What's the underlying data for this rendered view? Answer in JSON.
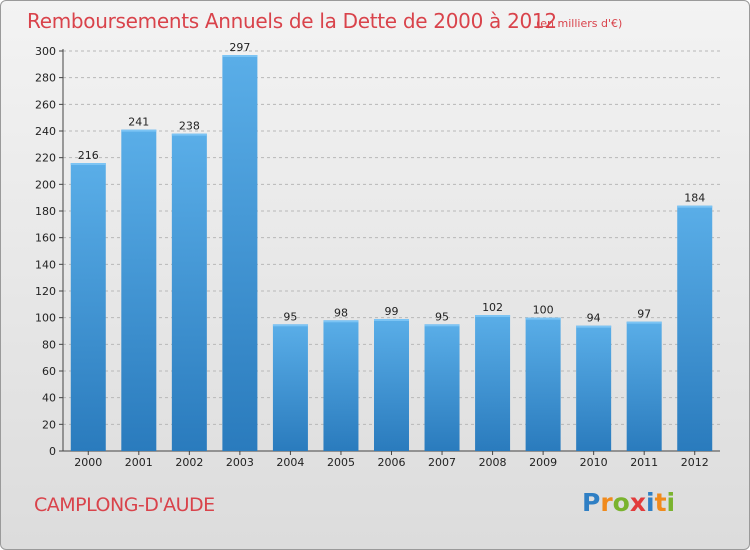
{
  "header": {
    "title": "Remboursements Annuels de la Dette de 2000 à 2012",
    "subtitle": "(en milliers d'€)"
  },
  "footer": {
    "place": "CAMPLONG-D'AUDE",
    "logo_text": "Proxiti",
    "logo_colors": [
      "#2f7fc4",
      "#f08a1c",
      "#7ab32e",
      "#e23b3b",
      "#2f7fc4",
      "#f08a1c",
      "#7ab32e"
    ]
  },
  "colors": {
    "bar_top": "#5aaee8",
    "bar_bottom": "#2a7bbd",
    "title": "#d9434b"
  },
  "chart_data": {
    "type": "bar",
    "title": "Remboursements Annuels de la Dette de 2000 à 2012",
    "subtitle": "(en milliers d'€)",
    "xlabel": "",
    "ylabel": "",
    "categories": [
      "2000",
      "2001",
      "2002",
      "2003",
      "2004",
      "2005",
      "2006",
      "2007",
      "2008",
      "2009",
      "2010",
      "2011",
      "2012"
    ],
    "values": [
      216,
      241,
      238,
      297,
      95,
      98,
      99,
      95,
      102,
      100,
      94,
      97,
      184
    ],
    "ylim": [
      0,
      300
    ],
    "yticks": [
      0,
      20,
      40,
      60,
      80,
      100,
      120,
      140,
      160,
      180,
      200,
      220,
      240,
      260,
      280,
      300
    ],
    "grid": true,
    "legend": "none"
  }
}
